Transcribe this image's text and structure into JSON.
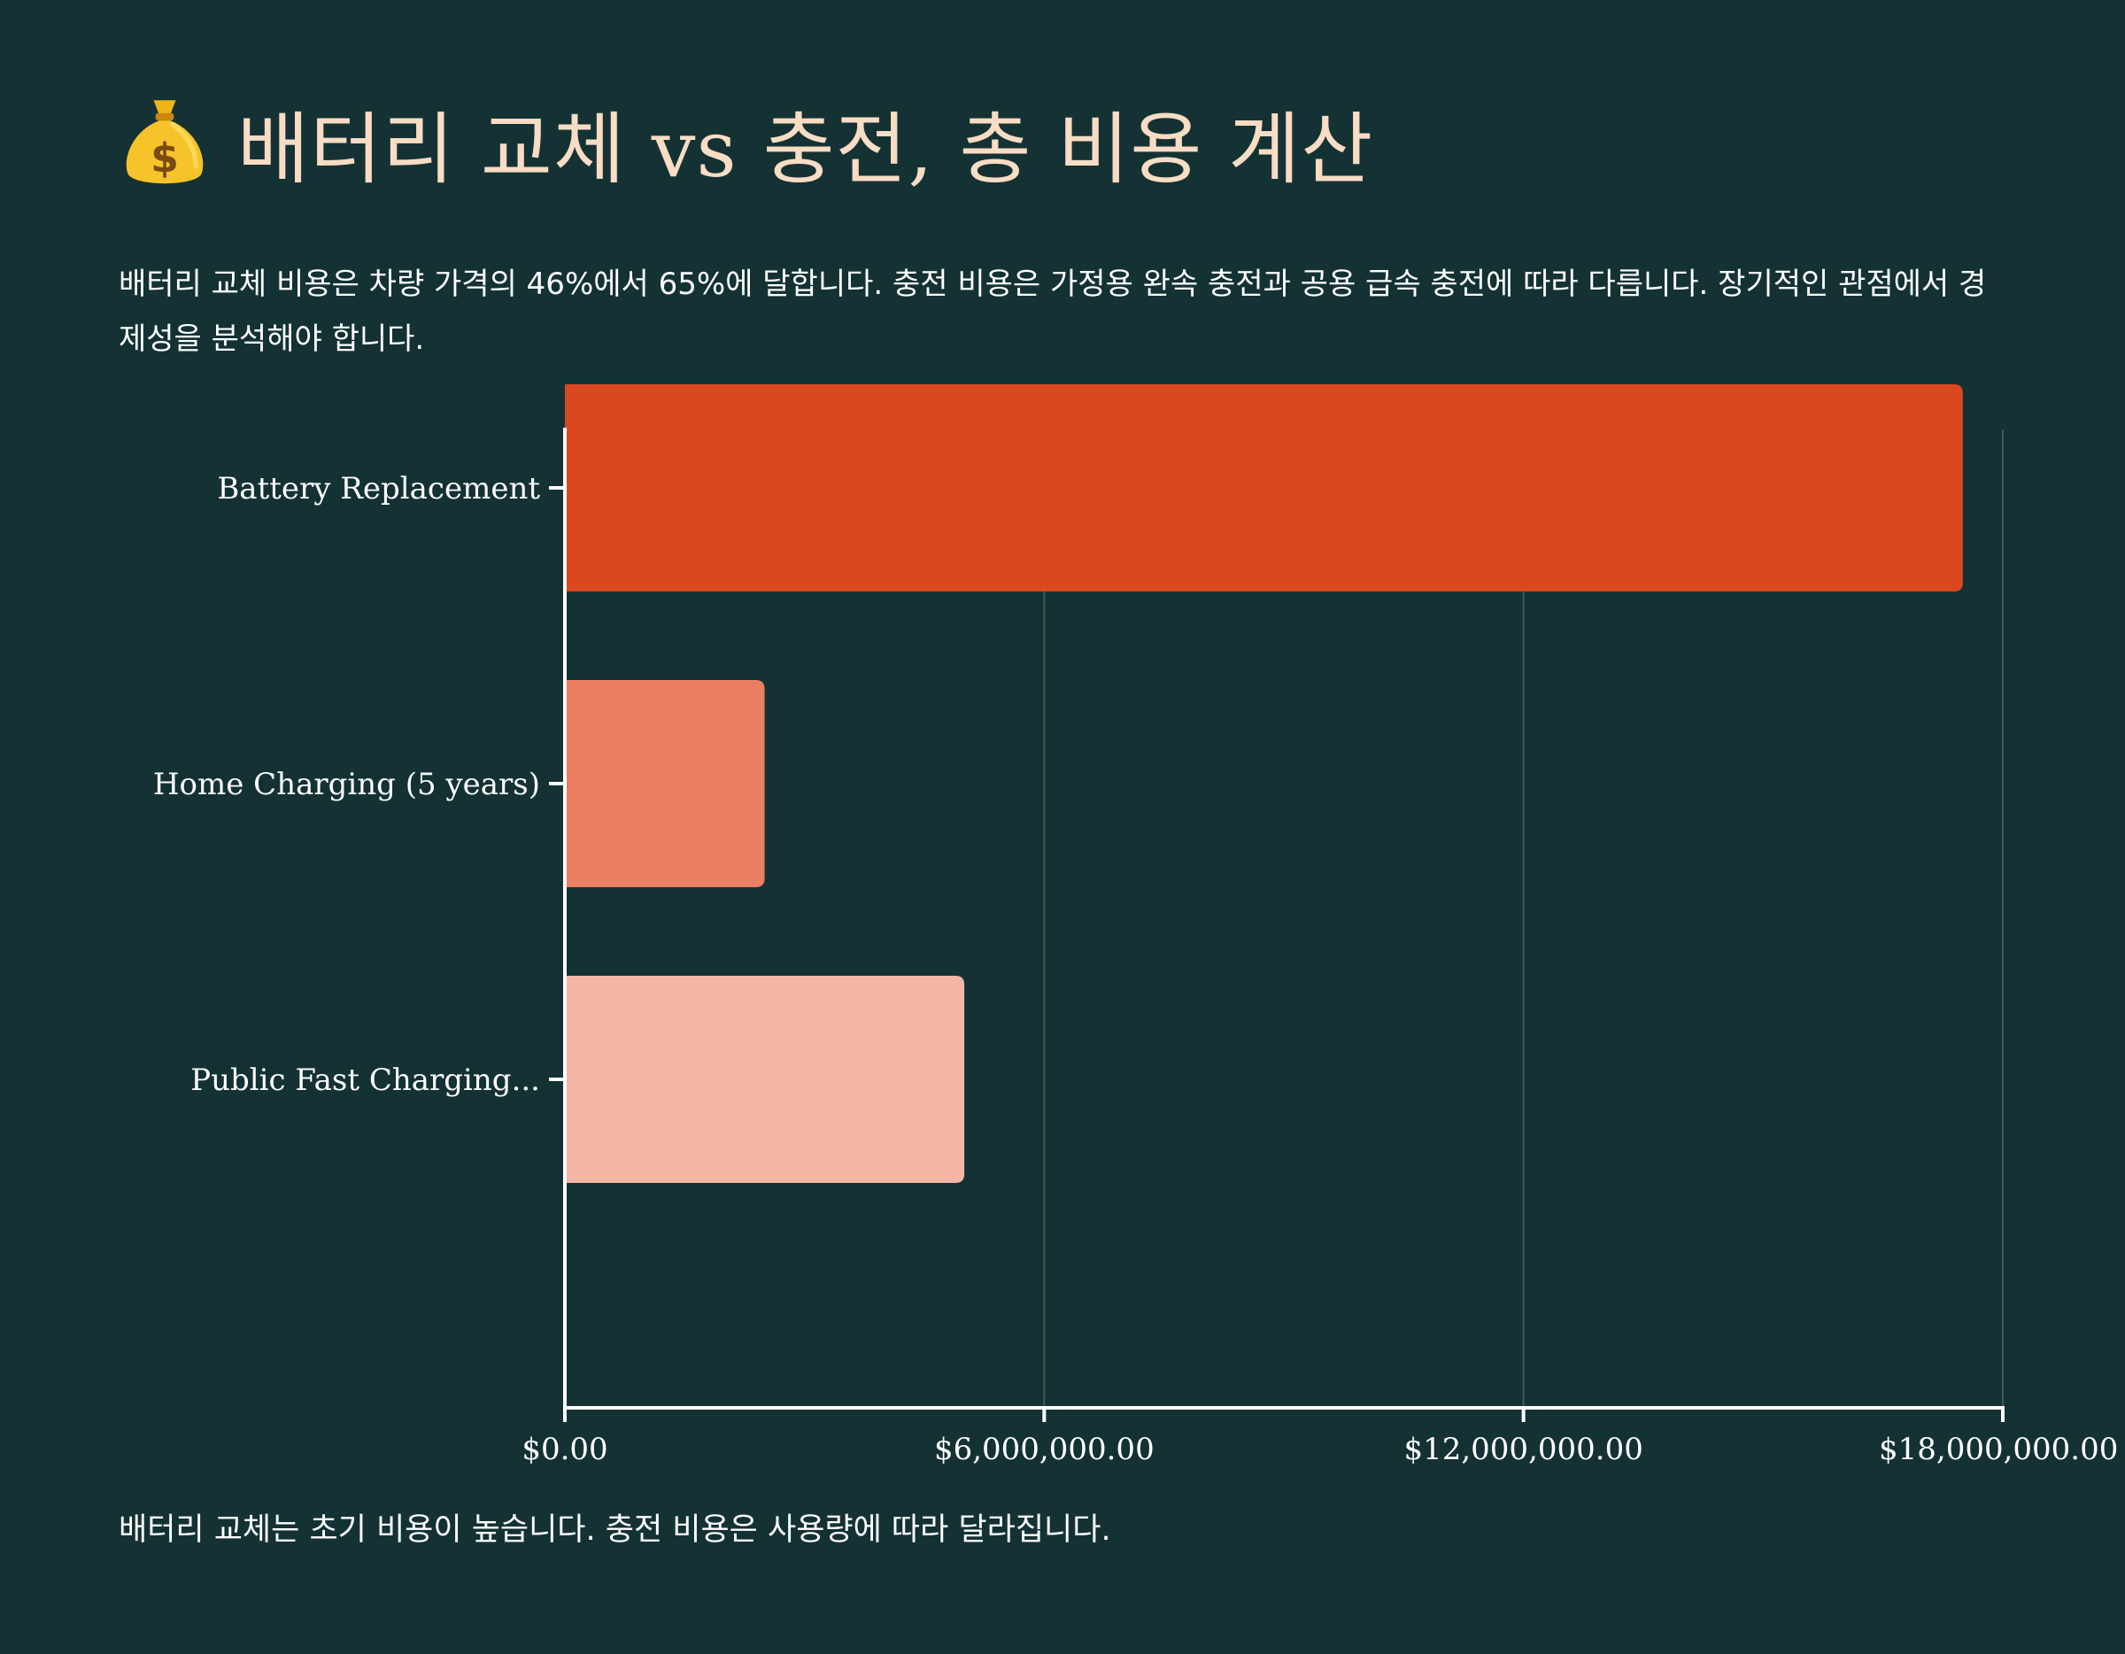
{
  "header": {
    "icon": "money-bag-icon",
    "title": "배터리 교체 vs 충전, 총 비용 계산"
  },
  "description": "배터리 교체 비용은 차량 가격의 46%에서 65%에 달합니다. 충전 비용은 가정용 완속 충전과 공용 급속 충전에 따라 다릅니다. 장기적인 관점에서 경제성을 분석해야 합니다.",
  "footnote": "배터리 교체는 초기 비용이 높습니다. 충전 비용은 사용량에 따라 달라집니다.",
  "colors": {
    "background": "#143234",
    "title": "#f8dcc4",
    "axis": "#ffffff",
    "grid": "#3c5a5a"
  },
  "chart_data": {
    "type": "bar",
    "orientation": "horizontal",
    "categories": [
      "Battery Replacement",
      "Home Charging (5 years)",
      "Public Fast Charging..."
    ],
    "values": [
      17500000,
      2500000,
      5000000
    ],
    "bar_colors": [
      "#d9481e",
      "#ea7f61",
      "#f3b5a4"
    ],
    "xlim": [
      0,
      18000000
    ],
    "x_ticks": [
      0,
      6000000,
      12000000,
      18000000
    ],
    "x_tick_labels": [
      "$0.00",
      "$6,000,000.00",
      "$12,000,000.00",
      "$18,000,000.00"
    ],
    "title": "",
    "xlabel": "",
    "ylabel": "",
    "grid": true,
    "legend": "none"
  }
}
